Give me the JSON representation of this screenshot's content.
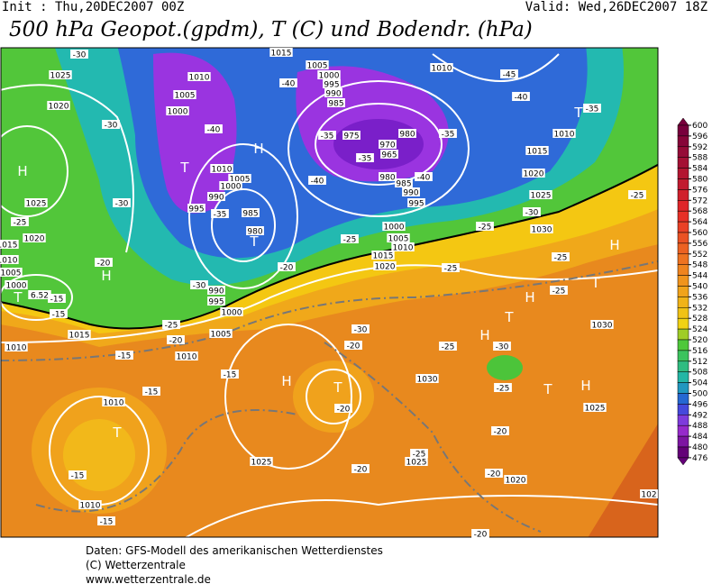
{
  "header": {
    "init": "Init : Thu,20DEC2007 00Z",
    "valid": "Valid: Wed,26DEC2007 18Z",
    "title": "500 hPa Geopot.(gpdm), T (C) und Bodendr. (hPa)"
  },
  "map": {
    "pressure_labels": [
      "1015",
      "1005",
      "1000",
      "995",
      "990",
      "985",
      "1010",
      "1025",
      "1020",
      "1010",
      "1005",
      "1000",
      "1010",
      "1005",
      "1000",
      "990",
      "995",
      "985",
      "980",
      "975",
      "980",
      "970",
      "965",
      "980",
      "985",
      "990",
      "995",
      "1000",
      "1005",
      "1010",
      "1015",
      "1020",
      "1015",
      "1020",
      "1025",
      "1030",
      "1010",
      "1025",
      "1020",
      "1015",
      "1010",
      "1005",
      "1000",
      "990",
      "995",
      "1000",
      "1005",
      "1015",
      "1010",
      "1010",
      "1030",
      "1030",
      "1025",
      "1010",
      "1010",
      "1025",
      "1025",
      "1020",
      "102"
    ],
    "temperature_labels": [
      "-30",
      "-40",
      "-45",
      "-40",
      "-35",
      "-30",
      "-40",
      "-35",
      "-35",
      "-40",
      "-40",
      "-35",
      "-35",
      "-30",
      "-25",
      "-25",
      "-30",
      "-25",
      "-25",
      "-25",
      "-20",
      "-20",
      "-25",
      "-30",
      "-15",
      "-15",
      "-25",
      "-20",
      "-15",
      "-15",
      "-20",
      "-30",
      "-25",
      "-30",
      "-25",
      "-20",
      "-15",
      "-15",
      "-15",
      "-25",
      "-20",
      "-20",
      "-20",
      "-20",
      "-25"
    ],
    "highs": [
      "H",
      "H",
      "H",
      "H",
      "H",
      "H",
      "H",
      "H"
    ],
    "lows": [
      "T",
      "T",
      "T",
      "T",
      "T",
      "T",
      "T",
      "T",
      "T"
    ],
    "spot_label": "6.52"
  },
  "legend": {
    "values": [
      600,
      596,
      592,
      588,
      584,
      580,
      576,
      572,
      568,
      564,
      560,
      556,
      552,
      548,
      544,
      540,
      536,
      532,
      528,
      524,
      520,
      516,
      512,
      508,
      504,
      500,
      496,
      492,
      488,
      484,
      480,
      476
    ]
  },
  "footer": [
    "Daten: GFS-Modell des amerikanischen Wetterdienstes",
    "(C) Wetterzentrale",
    "www.wetterzentrale.de"
  ]
}
